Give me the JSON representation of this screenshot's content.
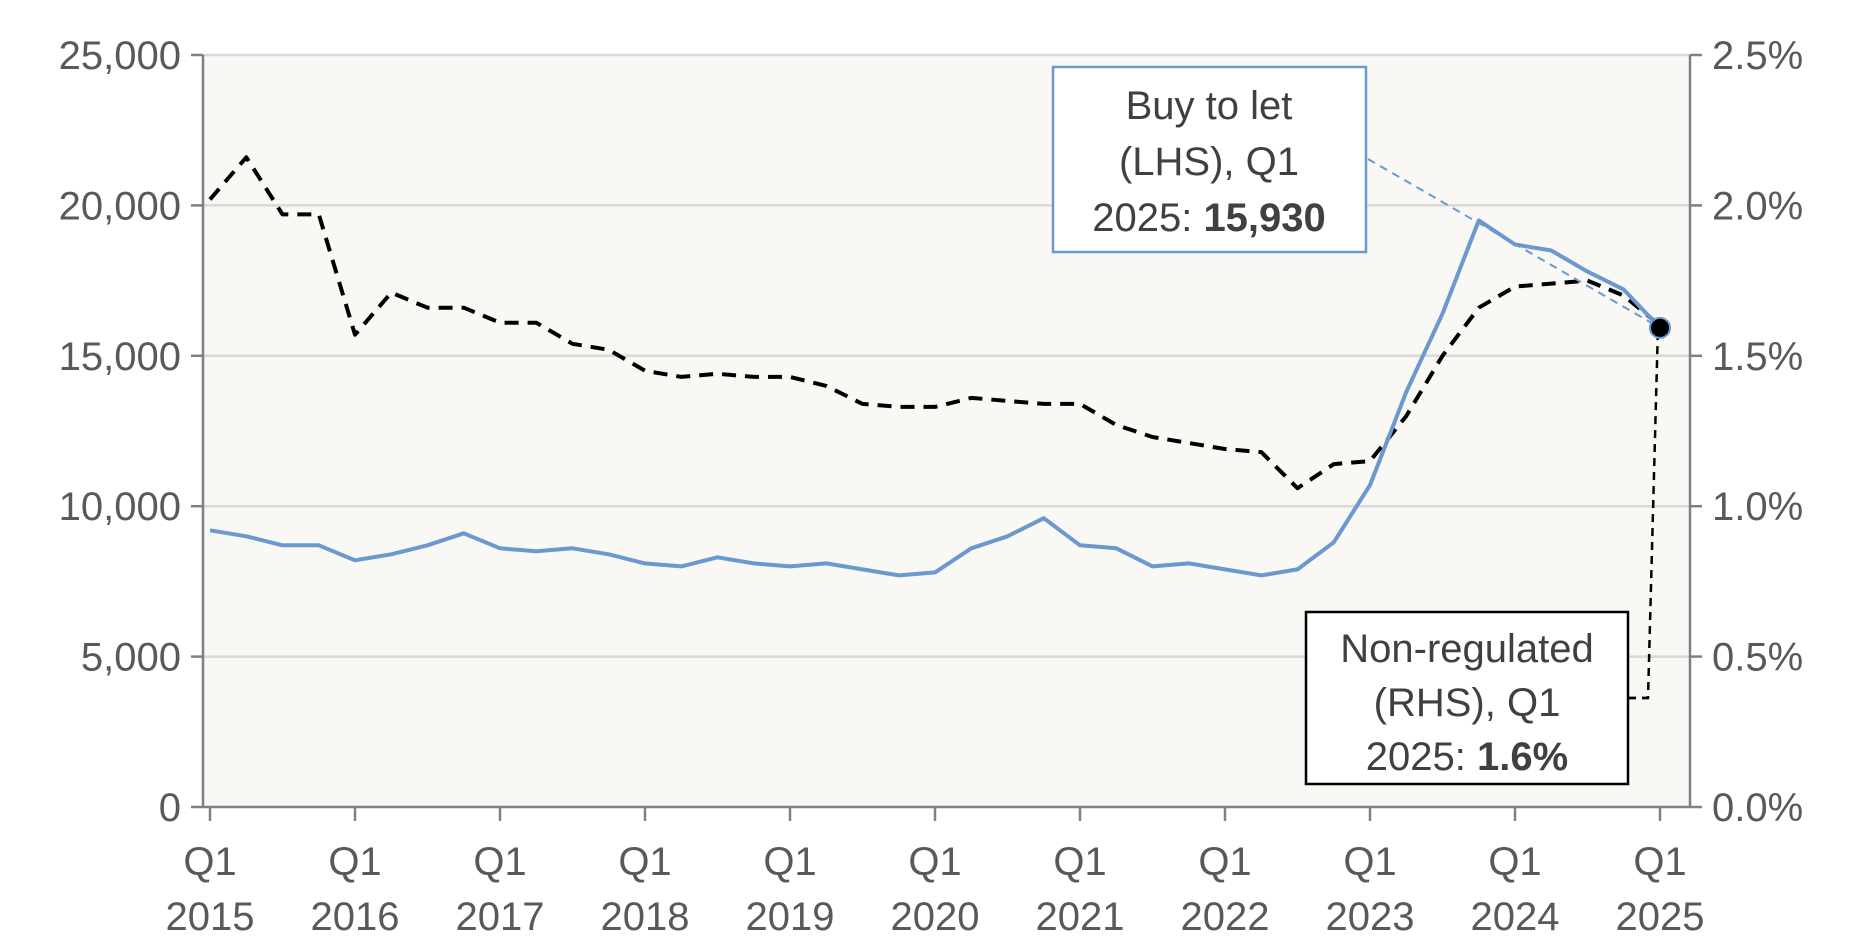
{
  "chart_data": {
    "type": "line",
    "x": [
      "2015 Q1",
      "2015 Q2",
      "2015 Q3",
      "2015 Q4",
      "2016 Q1",
      "2016 Q2",
      "2016 Q3",
      "2016 Q4",
      "2017 Q1",
      "2017 Q2",
      "2017 Q3",
      "2017 Q4",
      "2018 Q1",
      "2018 Q2",
      "2018 Q3",
      "2018 Q4",
      "2019 Q1",
      "2019 Q2",
      "2019 Q3",
      "2019 Q4",
      "2020 Q1",
      "2020 Q2",
      "2020 Q3",
      "2020 Q4",
      "2021 Q1",
      "2021 Q2",
      "2021 Q3",
      "2021 Q4",
      "2022 Q1",
      "2022 Q2",
      "2022 Q3",
      "2022 Q4",
      "2023 Q1",
      "2023 Q2",
      "2023 Q3",
      "2023 Q4",
      "2024 Q1",
      "2024 Q2",
      "2024 Q3",
      "2024 Q4",
      "2025 Q1"
    ],
    "x_tick_labels": [
      {
        "q": "Q1",
        "year": "2015"
      },
      {
        "q": "Q1",
        "year": "2016"
      },
      {
        "q": "Q1",
        "year": "2017"
      },
      {
        "q": "Q1",
        "year": "2018"
      },
      {
        "q": "Q1",
        "year": "2019"
      },
      {
        "q": "Q1",
        "year": "2020"
      },
      {
        "q": "Q1",
        "year": "2021"
      },
      {
        "q": "Q1",
        "year": "2022"
      },
      {
        "q": "Q1",
        "year": "2023"
      },
      {
        "q": "Q1",
        "year": "2024"
      },
      {
        "q": "Q1",
        "year": "2025"
      }
    ],
    "y_left": {
      "ylim": [
        0,
        25000
      ],
      "ticks": [
        "0",
        "5,000",
        "10,000",
        "15,000",
        "20,000",
        "25,000"
      ]
    },
    "y_right": {
      "ylim": [
        0,
        2.5
      ],
      "ticks": [
        "0.0%",
        "0.5%",
        "1.0%",
        "1.5%",
        "2.0%",
        "2.5%"
      ]
    },
    "grid": true,
    "series": [
      {
        "name": "Buy to let (LHS)",
        "axis": "left",
        "color": "#6a98cf",
        "style": "solid",
        "values": [
          9200,
          9000,
          8700,
          8700,
          8200,
          8400,
          8700,
          9100,
          8600,
          8500,
          8600,
          8400,
          8100,
          8000,
          8300,
          8100,
          8000,
          8100,
          7900,
          7700,
          7800,
          8600,
          9000,
          9600,
          8700,
          8600,
          8000,
          8100,
          7900,
          7700,
          7900,
          8800,
          10700,
          13800,
          16400,
          19500,
          18700,
          18500,
          17800,
          17200,
          15930
        ]
      },
      {
        "name": "Non-regulated (RHS)",
        "axis": "right",
        "color": "#000000",
        "style": "dashed",
        "values": [
          2.02,
          2.16,
          1.97,
          1.97,
          1.57,
          1.71,
          1.66,
          1.66,
          1.61,
          1.61,
          1.54,
          1.52,
          1.45,
          1.43,
          1.44,
          1.43,
          1.43,
          1.4,
          1.34,
          1.33,
          1.33,
          1.36,
          1.35,
          1.34,
          1.34,
          1.27,
          1.23,
          1.21,
          1.19,
          1.18,
          1.06,
          1.14,
          1.15,
          1.3,
          1.5,
          1.66,
          1.73,
          1.74,
          1.75,
          1.7,
          1.6
        ]
      }
    ],
    "annotations": {
      "btl": {
        "line1": "Buy to let",
        "line2": "(LHS), Q1",
        "line3_prefix": "2025: ",
        "line3_value": "15,930"
      },
      "nonreg": {
        "line1": "Non-regulated",
        "line2": "(RHS), Q1",
        "line3_prefix": "2025: ",
        "line3_value": "1.6%"
      }
    },
    "colors": {
      "plot_bg": "#f9f8f5",
      "grid": "#d9d9d9",
      "axis": "#808080",
      "btl": "#6a98cf",
      "nonreg": "#000000"
    }
  }
}
